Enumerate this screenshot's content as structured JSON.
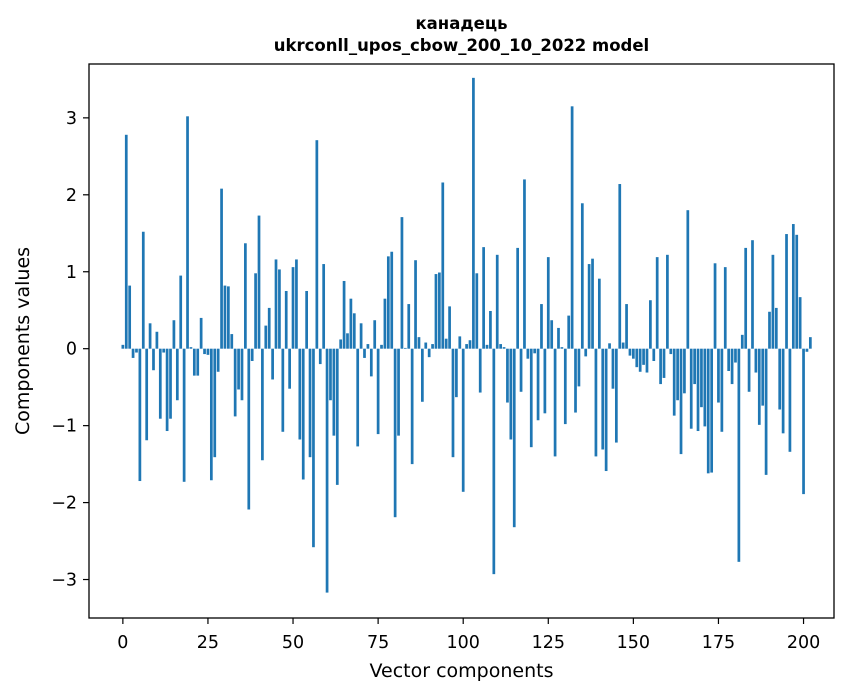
{
  "chart_data": {
    "type": "bar",
    "title": "канадець",
    "subtitle": "ukrconll_upos_cbow_200_10_2022 model",
    "xlabel": "Vector components",
    "ylabel": "Components values",
    "xlim": [
      -9.95,
      208.95
    ],
    "ylim": [
      -3.5,
      3.7
    ],
    "xticks": [
      0,
      25,
      50,
      75,
      100,
      125,
      150,
      175,
      200
    ],
    "yticks": [
      -3,
      -2,
      -1,
      0,
      1,
      2,
      3
    ],
    "ytick_labels": [
      "−3",
      "−2",
      "−1",
      "0",
      "1",
      "2",
      "3"
    ],
    "bar_color": "#1f77b4",
    "values": [
      0.05,
      2.78,
      0.82,
      -0.12,
      -0.05,
      -1.72,
      1.52,
      -1.19,
      0.33,
      -0.28,
      0.22,
      -0.91,
      -0.05,
      -1.07,
      -0.91,
      0.37,
      -0.67,
      0.95,
      -1.73,
      3.02,
      0.02,
      -0.35,
      -0.35,
      0.4,
      -0.07,
      -0.08,
      -1.71,
      -1.41,
      -0.3,
      2.08,
      0.82,
      0.81,
      0.19,
      -0.88,
      -0.53,
      -0.67,
      1.37,
      -2.09,
      -0.16,
      0.98,
      1.73,
      -1.45,
      0.3,
      0.53,
      -0.4,
      1.16,
      1.03,
      -1.08,
      0.75,
      -0.52,
      1.06,
      1.16,
      -1.18,
      -1.7,
      0.75,
      -1.41,
      -2.58,
      2.71,
      -0.2,
      1.1,
      -3.17,
      -0.67,
      -1.13,
      -1.77,
      0.12,
      0.88,
      0.2,
      0.65,
      0.46,
      -1.27,
      0.33,
      -0.12,
      0.06,
      -0.36,
      0.37,
      -1.11,
      0.05,
      0.65,
      1.2,
      1.26,
      -2.19,
      -1.13,
      1.71,
      0.01,
      0.58,
      -1.5,
      1.15,
      0.15,
      -0.69,
      0.08,
      -0.11,
      0.06,
      0.97,
      0.99,
      2.16,
      0.13,
      0.55,
      -1.41,
      -0.63,
      0.16,
      -1.86,
      0.06,
      0.11,
      3.52,
      0.98,
      -0.57,
      1.32,
      0.05,
      0.49,
      -2.93,
      1.22,
      0.06,
      0.02,
      -0.7,
      -1.18,
      -2.32,
      1.31,
      -0.56,
      2.2,
      -0.13,
      -1.28,
      -0.06,
      -0.93,
      0.58,
      -0.84,
      1.19,
      0.37,
      -1.4,
      0.27,
      0.02,
      -0.98,
      0.43,
      3.15,
      -0.83,
      -0.49,
      1.89,
      -0.1,
      1.1,
      1.17,
      -1.4,
      0.91,
      -1.31,
      -1.59,
      0.07,
      -0.52,
      -1.22,
      2.14,
      0.08,
      0.58,
      -0.09,
      -0.13,
      -0.24,
      -0.3,
      -0.21,
      -0.31,
      0.63,
      -0.16,
      1.19,
      -0.46,
      -0.38,
      1.22,
      -0.07,
      -0.87,
      -0.67,
      -1.37,
      -0.58,
      1.8,
      -1.04,
      -0.46,
      -1.07,
      -0.76,
      -1.01,
      -1.62,
      -1.61,
      1.11,
      -0.7,
      -1.08,
      1.06,
      -0.29,
      -0.46,
      -0.18,
      -2.77,
      0.18,
      1.31,
      -0.56,
      1.41,
      -0.31,
      -0.99,
      -0.74,
      -1.64,
      0.48,
      1.22,
      0.53,
      -0.79,
      -1.1,
      1.49,
      -1.34,
      1.62,
      1.48,
      0.67,
      -1.89,
      -0.04,
      0.15
    ]
  }
}
